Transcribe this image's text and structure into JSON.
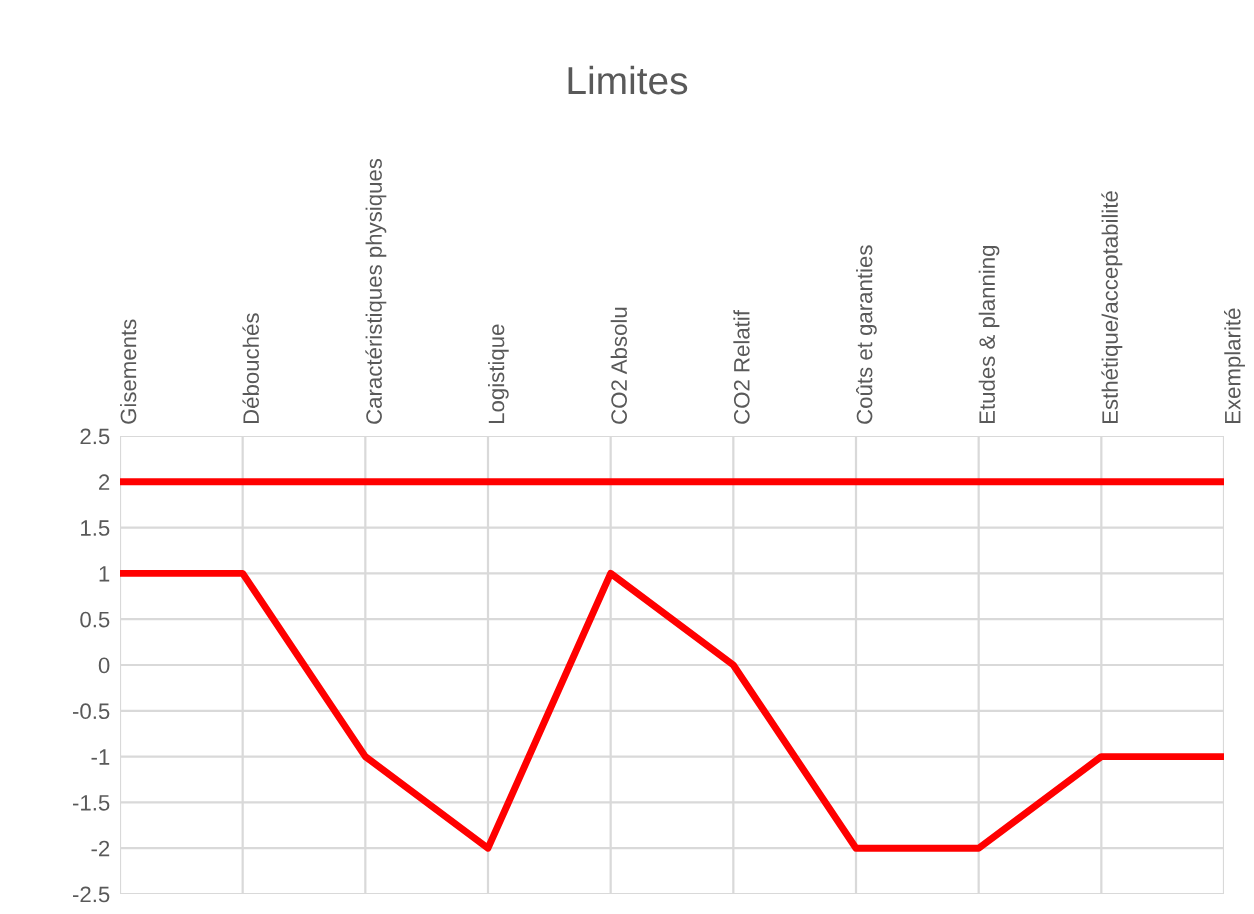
{
  "chart_data": {
    "type": "line",
    "title": "Limites",
    "categories": [
      "Gisements",
      "Débouchés",
      "Caractéristiques physiques",
      "Logistique",
      "CO2 Absolu",
      "CO2 Relatif",
      "Coûts et garanties",
      "Etudes & planning",
      "Esthétique/acceptabilité",
      "Exemplarité"
    ],
    "series": [
      {
        "color": "#ff0000",
        "values": [
          2,
          2,
          2,
          2,
          2,
          2,
          2,
          2,
          2,
          2
        ]
      },
      {
        "color": "#ff0000",
        "values": [
          1,
          1,
          -1,
          -2,
          1,
          0,
          -2,
          -2,
          -1,
          -1
        ]
      }
    ],
    "ylim": [
      -2.5,
      2.5
    ],
    "yticks": [
      -2.5,
      -2,
      -1.5,
      -1,
      -0.5,
      0,
      0.5,
      1,
      1.5,
      2,
      2.5
    ],
    "grid": true,
    "marker": "none",
    "line_style": "solid"
  }
}
